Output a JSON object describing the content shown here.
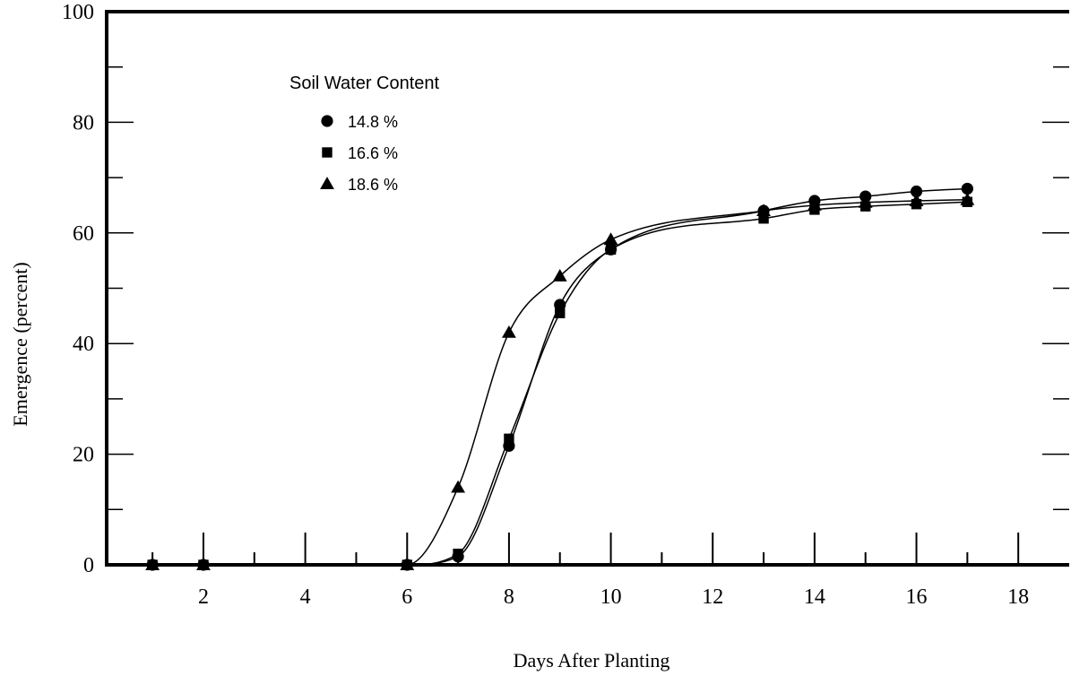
{
  "chart_data": {
    "type": "line",
    "title": "",
    "xlabel": "Days After Planting",
    "ylabel": "Emergence (percent)",
    "xlim": [
      0.1,
      19.0
    ],
    "ylim": [
      0,
      100
    ],
    "x_ticks": [
      2,
      4,
      6,
      8,
      10,
      12,
      14,
      16,
      18
    ],
    "y_ticks": [
      0,
      20,
      40,
      60,
      80,
      100
    ],
    "grid": false,
    "legend": {
      "title": "Soil Water Content",
      "placement": "top-left"
    },
    "series": [
      {
        "name": "14.8 %",
        "marker": "circle",
        "x": [
          1,
          2,
          6,
          7,
          8,
          9,
          10,
          13,
          14,
          15,
          16,
          17
        ],
        "values": [
          0,
          0,
          0,
          1.5,
          21.5,
          47,
          57,
          64,
          65.8,
          66.6,
          67.5,
          68
        ]
      },
      {
        "name": "16.6 %",
        "marker": "square",
        "x": [
          1,
          2,
          6,
          7,
          8,
          9,
          10,
          13,
          14,
          15,
          16,
          17
        ],
        "values": [
          0,
          0,
          0,
          2,
          22.8,
          45.5,
          57,
          62.6,
          64.2,
          64.8,
          65.2,
          65.6
        ]
      },
      {
        "name": "18.6 %",
        "marker": "triangle",
        "x": [
          1,
          2,
          6,
          7,
          8,
          9,
          10,
          13,
          14,
          15,
          16,
          17
        ],
        "values": [
          0,
          0,
          0,
          14,
          42,
          52.2,
          58.8,
          64,
          65,
          65.5,
          65.8,
          66
        ]
      }
    ]
  }
}
